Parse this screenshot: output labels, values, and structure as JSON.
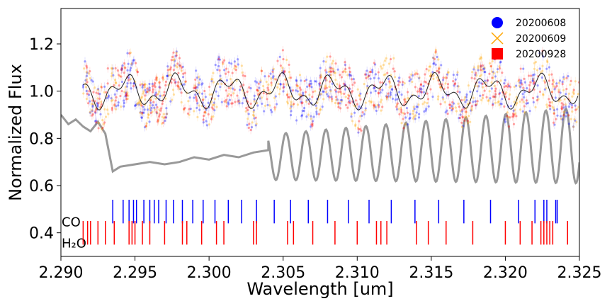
{
  "chart_data": {
    "type": "scatter",
    "xlabel": "Wavelength [um]",
    "ylabel": "Normalized Flux",
    "xlim": [
      2.29,
      2.325
    ],
    "ylim": [
      0.3,
      1.35
    ],
    "grid": false,
    "legend_position": "top-right",
    "x_ticks": [
      "2.290",
      "2.295",
      "2.300",
      "2.305",
      "2.310",
      "2.315",
      "2.320",
      "2.325"
    ],
    "y_ticks": [
      "0.4",
      "0.6",
      "0.8",
      "1.0",
      "1.2"
    ],
    "series": [
      {
        "name": "20200608",
        "marker": "circle",
        "color": "#0000ff"
      },
      {
        "name": "20200609",
        "marker": "x",
        "color": "#ffa500"
      },
      {
        "name": "20200928",
        "marker": "square",
        "color": "#ff0000"
      }
    ],
    "observed_region": [
      2.2915,
      2.325
    ],
    "observed_mean": 1.0,
    "observed_scatter": 0.05,
    "model_offset": 0.0,
    "template_line": {
      "color": "#999999",
      "x": [
        2.29,
        2.2905,
        2.291,
        2.2915,
        2.292,
        2.2925,
        2.293,
        2.2935,
        2.294,
        2.295,
        2.296,
        2.297,
        2.298,
        2.299,
        2.3,
        2.301,
        2.302,
        2.303,
        2.304
      ],
      "y": [
        0.9,
        0.86,
        0.88,
        0.85,
        0.83,
        0.87,
        0.82,
        0.66,
        0.68,
        0.69,
        0.7,
        0.69,
        0.7,
        0.72,
        0.71,
        0.73,
        0.72,
        0.74,
        0.75
      ]
    },
    "line_lists": [
      {
        "label": "CO",
        "color": "#0000ff",
        "y_range": [
          0.44,
          0.54
        ],
        "positions": [
          2.2935,
          2.2942,
          2.2946,
          2.2949,
          2.2951,
          2.2956,
          2.296,
          2.2963,
          2.2966,
          2.2971,
          2.2976,
          2.2982,
          2.2989,
          2.2996,
          2.3004,
          2.3013,
          2.3022,
          2.3032,
          2.3044,
          2.3055,
          2.3067,
          2.308,
          2.3094,
          2.3108,
          2.3123,
          2.3139,
          2.3155,
          2.3172,
          2.319,
          2.3209,
          2.322,
          2.3226,
          2.3228,
          2.3234,
          2.3235
        ]
      },
      {
        "label": "H₂O",
        "color": "#ff0000",
        "y_range": [
          0.35,
          0.45
        ],
        "positions": [
          2.2915,
          2.2918,
          2.292,
          2.2925,
          2.293,
          2.2936,
          2.2946,
          2.2948,
          2.295,
          2.2955,
          2.296,
          2.297,
          2.2982,
          2.2985,
          2.2995,
          2.3005,
          2.301,
          2.303,
          2.3032,
          2.3053,
          2.3057,
          2.307,
          2.3085,
          2.31,
          2.3113,
          2.3116,
          2.312,
          2.314,
          2.3148,
          2.316,
          2.3178,
          2.32,
          2.321,
          2.3218,
          2.3224,
          2.3226,
          2.3228,
          2.323,
          2.3232,
          2.3242
        ]
      }
    ]
  }
}
